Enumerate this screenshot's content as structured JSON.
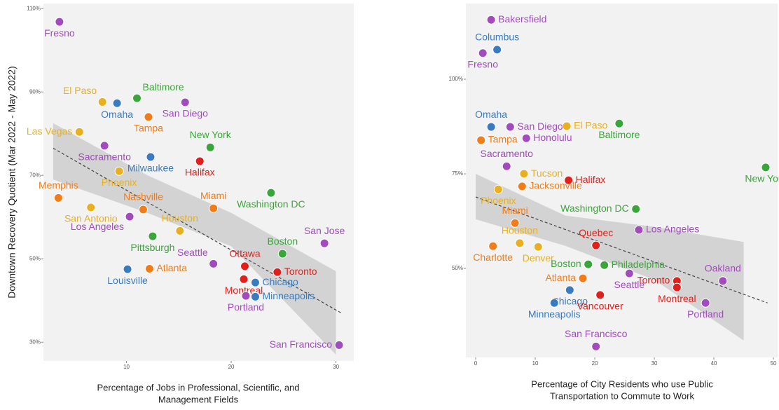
{
  "chart_data": [
    {
      "type": "scatter",
      "ylabel": "Downtown Recovery Quotient (Mar 2022 - May 2022)",
      "xlabel": [
        "Percentage of Jobs in Professional, Scientific, and",
        "Management Fields"
      ],
      "xlim": [
        2.07,
        31.7
      ],
      "ylim": [
        25.5,
        111.2
      ],
      "xticks": [
        10,
        20,
        30
      ],
      "yticks": [
        {
          "value": 30,
          "label": "30%"
        },
        {
          "value": 50,
          "label": "50%"
        },
        {
          "value": 70,
          "label": "70%"
        },
        {
          "value": 90,
          "label": "90%"
        },
        {
          "value": 110,
          "label": "110%"
        }
      ],
      "labels": [
        "Fresno",
        "El Paso",
        "Omaha",
        "Baltimore",
        "San Diego",
        "Tampa",
        "Las Vegas",
        "New York",
        "Sacramento",
        "Milwaukee",
        "Halifax",
        "Phoenix",
        "Memphis",
        "San Antonio",
        "Nashville",
        "Miami",
        "Washington DC",
        "Los Angeles",
        "Houston",
        "Pittsburgh",
        "San Jose",
        "Boston",
        "Seattle",
        "Ottawa",
        "Toronto",
        "Atlanta",
        "Louisville",
        "Montreal",
        "Chicago",
        "Portland",
        "Minneapolis",
        "San Francisco"
      ],
      "x": [
        3.6,
        7.7,
        9.1,
        11,
        15.6,
        12.1,
        5.5,
        18,
        7.9,
        12.3,
        17,
        9.3,
        3.5,
        6.6,
        11.6,
        18.3,
        23.8,
        10.3,
        15.1,
        12.5,
        28.9,
        24.9,
        18.3,
        21.3,
        24.4,
        12.2,
        10.1,
        21.2,
        22.3,
        21.4,
        22.3,
        30.3
      ],
      "values": [
        106.8,
        87.6,
        87.3,
        88.5,
        87.5,
        84,
        80.4,
        76.7,
        77.1,
        74.4,
        73.4,
        71,
        64.6,
        62.3,
        61.8,
        62.1,
        65.8,
        60.1,
        56.7,
        55.4,
        53.7,
        51.2,
        48.8,
        48.2,
        46.8,
        47.6,
        47.5,
        45.1,
        44.3,
        41.1,
        40.9,
        29.3
      ],
      "colors": [
        "#a24bbd",
        "#e8b020",
        "#3a7bbf",
        "#3aa53a",
        "#a24bbd",
        "#f07d1a",
        "#e8b020",
        "#3aa53a",
        "#a24bbd",
        "#3a7bbf",
        "#e0201c",
        "#e8b020",
        "#f07d1a",
        "#e8b020",
        "#f07d1a",
        "#f07d1a",
        "#3aa53a",
        "#a24bbd",
        "#e8b020",
        "#3aa53a",
        "#a24bbd",
        "#3aa53a",
        "#a24bbd",
        "#e0201c",
        "#e0201c",
        "#f07d1a",
        "#3a7bbf",
        "#e0201c",
        "#3a7bbf",
        "#a24bbd",
        "#3a7bbf",
        "#a24bbd"
      ],
      "trend": {
        "x": [
          3,
          30.5
        ],
        "y": [
          76.5,
          37
        ]
      },
      "band": {
        "x": [
          3,
          12,
          20,
          30
        ],
        "upper": [
          82.5,
          70,
          61,
          47
        ],
        "lower": [
          69,
          61,
          53,
          27
        ]
      }
    },
    {
      "type": "scatter",
      "xlabel": [
        "Percentage of City Residents who use Public",
        "Transportation to Commute to Work"
      ],
      "xlim": [
        -1.65,
        50.7
      ],
      "ylim": [
        26.5,
        120
      ],
      "xticks": [
        0,
        10,
        20,
        30,
        40,
        50
      ],
      "yticks": [
        {
          "value": 50,
          "label": "50%"
        },
        {
          "value": 75,
          "label": "75%"
        },
        {
          "value": 100,
          "label": "100%"
        }
      ],
      "labels": [
        "Bakersfield",
        "Columbus",
        "Fresno",
        "Omaha",
        "San Diego",
        "El Paso",
        "Baltimore",
        "Honolulu",
        "Tampa",
        "Sacramento",
        "Tucson",
        "Halifax",
        "New York",
        "Phoenix",
        "Jacksonville",
        "Washington DC",
        "Los Angeles",
        "Miami",
        "Quebec",
        "Houston",
        "Charlotte",
        "Denver",
        "Boston",
        "Philadelphia",
        "Seattle",
        "Toronto",
        "Montreal",
        "Oakland",
        "Atlanta",
        "Chicago",
        "Vancouver",
        "Minneapolis",
        "Portland",
        "San Francisco"
      ],
      "x": [
        2.6,
        3.6,
        1.2,
        2.6,
        5.8,
        15.3,
        24.1,
        8.5,
        0.9,
        5.2,
        8.1,
        15.6,
        48.7,
        3.8,
        7.8,
        26.9,
        27.4,
        6.6,
        20.2,
        7.4,
        2.9,
        10.5,
        18.9,
        21.6,
        25.8,
        33.8,
        33.8,
        41.5,
        18,
        15.8,
        20.9,
        13.2,
        38.6,
        20.2
      ],
      "values": [
        115.7,
        107.8,
        106.9,
        87.4,
        87.4,
        87.6,
        88.3,
        84.4,
        83.9,
        77,
        75,
        73.3,
        76.7,
        70.9,
        71.7,
        65.7,
        60.2,
        62,
        56.1,
        56.7,
        55.9,
        55.7,
        51.1,
        50.9,
        48.7,
        46.7,
        45,
        46.7,
        47.4,
        44.3,
        43,
        40.9,
        40.9,
        29.4
      ],
      "colors": [
        "#a24bbd",
        "#3a7bbf",
        "#a24bbd",
        "#3a7bbf",
        "#a24bbd",
        "#e8b020",
        "#3aa53a",
        "#a24bbd",
        "#f07d1a",
        "#a24bbd",
        "#e8b020",
        "#e0201c",
        "#3aa53a",
        "#e8b020",
        "#f07d1a",
        "#3aa53a",
        "#a24bbd",
        "#f07d1a",
        "#e0201c",
        "#e8b020",
        "#f07d1a",
        "#e8b020",
        "#3aa53a",
        "#3aa53a",
        "#a24bbd",
        "#e0201c",
        "#e0201c",
        "#a24bbd",
        "#f07d1a",
        "#3a7bbf",
        "#e0201c",
        "#3a7bbf",
        "#a24bbd",
        "#a24bbd"
      ],
      "trend": {
        "x": [
          0,
          49
        ],
        "y": [
          68.9,
          40.9
        ]
      },
      "band": {
        "x": [
          0,
          15,
          30,
          45
        ],
        "upper": [
          75,
          64,
          61,
          57
        ],
        "lower": [
          63,
          56,
          47,
          31
        ]
      }
    }
  ]
}
